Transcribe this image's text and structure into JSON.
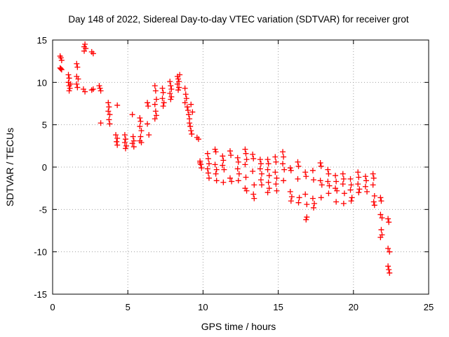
{
  "chart_data": {
    "type": "scatter",
    "title": "Day 148 of 2022, Sidereal Day-to-day VTEC variation (SDTVAR) for receiver grot",
    "xlabel": "GPS time / hours",
    "ylabel": "SDTVAR / TECUs",
    "xlim": [
      0,
      25
    ],
    "ylim": [
      -15,
      15
    ],
    "xticks": [
      0,
      5,
      10,
      15,
      20,
      25
    ],
    "yticks": [
      -15,
      -10,
      -5,
      0,
      5,
      10,
      15
    ],
    "grid": true,
    "marker": "+",
    "color": "#ff0000",
    "series": [
      {
        "name": "SDTVAR",
        "points": [
          [
            0.5,
            13.1
          ],
          [
            0.55,
            12.9
          ],
          [
            0.6,
            12.6
          ],
          [
            0.5,
            11.7
          ],
          [
            0.55,
            11.6
          ],
          [
            0.6,
            11.5
          ],
          [
            1.05,
            10.9
          ],
          [
            1.1,
            10.5
          ],
          [
            1.05,
            10.0
          ],
          [
            1.1,
            9.6
          ],
          [
            1.15,
            9.3
          ],
          [
            1.1,
            9.0
          ],
          [
            1.2,
            9.8
          ],
          [
            1.6,
            12.2
          ],
          [
            1.65,
            11.8
          ],
          [
            1.6,
            10.7
          ],
          [
            1.7,
            10.4
          ],
          [
            1.6,
            9.8
          ],
          [
            1.65,
            9.4
          ],
          [
            2.1,
            14.2
          ],
          [
            2.15,
            14.5
          ],
          [
            2.2,
            14.0
          ],
          [
            2.1,
            13.7
          ],
          [
            2.05,
            9.2
          ],
          [
            2.15,
            8.9
          ],
          [
            2.6,
            13.6
          ],
          [
            2.7,
            13.4
          ],
          [
            2.6,
            9.1
          ],
          [
            2.7,
            9.2
          ],
          [
            3.1,
            9.6
          ],
          [
            3.15,
            9.3
          ],
          [
            3.2,
            9.0
          ],
          [
            3.2,
            5.2
          ],
          [
            3.7,
            7.6
          ],
          [
            3.75,
            7.1
          ],
          [
            3.7,
            6.6
          ],
          [
            3.8,
            6.2
          ],
          [
            3.75,
            5.6
          ],
          [
            3.8,
            5.1
          ],
          [
            4.3,
            7.3
          ],
          [
            4.2,
            3.8
          ],
          [
            4.3,
            3.4
          ],
          [
            4.25,
            3.0
          ],
          [
            4.3,
            2.6
          ],
          [
            4.8,
            3.8
          ],
          [
            4.85,
            3.3
          ],
          [
            4.8,
            2.9
          ],
          [
            4.9,
            2.5
          ],
          [
            4.85,
            2.2
          ],
          [
            5.3,
            6.2
          ],
          [
            5.35,
            3.6
          ],
          [
            5.4,
            3.1
          ],
          [
            5.3,
            2.8
          ],
          [
            5.4,
            2.4
          ],
          [
            5.8,
            5.8
          ],
          [
            5.85,
            5.4
          ],
          [
            5.8,
            4.8
          ],
          [
            5.9,
            4.3
          ],
          [
            5.85,
            3.6
          ],
          [
            5.8,
            3.1
          ],
          [
            5.9,
            2.9
          ],
          [
            6.3,
            7.6
          ],
          [
            6.35,
            7.2
          ],
          [
            6.3,
            5.1
          ],
          [
            6.4,
            3.8
          ],
          [
            6.8,
            9.6
          ],
          [
            6.85,
            9.0
          ],
          [
            6.9,
            8.0
          ],
          [
            6.8,
            7.4
          ],
          [
            6.85,
            6.6
          ],
          [
            6.9,
            6.1
          ],
          [
            6.8,
            5.7
          ],
          [
            7.3,
            9.3
          ],
          [
            7.35,
            8.8
          ],
          [
            7.3,
            8.1
          ],
          [
            7.4,
            7.6
          ],
          [
            7.35,
            7.2
          ],
          [
            7.8,
            10.1
          ],
          [
            7.85,
            9.6
          ],
          [
            7.9,
            9.2
          ],
          [
            7.8,
            8.7
          ],
          [
            7.9,
            8.3
          ],
          [
            7.85,
            8.0
          ],
          [
            8.3,
            10.7
          ],
          [
            8.35,
            10.4
          ],
          [
            8.4,
            10.1
          ],
          [
            8.3,
            9.8
          ],
          [
            8.4,
            9.4
          ],
          [
            8.35,
            9.1
          ],
          [
            8.45,
            10.9
          ],
          [
            8.8,
            9.3
          ],
          [
            8.85,
            8.6
          ],
          [
            8.9,
            8.1
          ],
          [
            8.8,
            7.6
          ],
          [
            8.95,
            7.1
          ],
          [
            9.0,
            6.7
          ],
          [
            9.05,
            6.2
          ],
          [
            9.1,
            5.7
          ],
          [
            9.1,
            5.2
          ],
          [
            9.15,
            4.8
          ],
          [
            9.2,
            4.3
          ],
          [
            9.25,
            3.9
          ],
          [
            9.2,
            7.4
          ],
          [
            9.3,
            6.5
          ],
          [
            9.6,
            3.5
          ],
          [
            9.7,
            3.3
          ],
          [
            9.8,
            0.7
          ],
          [
            9.85,
            0.3
          ],
          [
            9.9,
            -0.1
          ],
          [
            9.8,
            0.5
          ],
          [
            10.3,
            1.6
          ],
          [
            10.35,
            1.0
          ],
          [
            10.4,
            0.4
          ],
          [
            10.3,
            -0.2
          ],
          [
            10.35,
            -0.7
          ],
          [
            10.4,
            -1.3
          ],
          [
            10.8,
            2.1
          ],
          [
            10.85,
            1.8
          ],
          [
            10.8,
            0.3
          ],
          [
            10.9,
            -0.3
          ],
          [
            10.85,
            -0.8
          ],
          [
            10.9,
            -1.6
          ],
          [
            11.3,
            1.3
          ],
          [
            11.35,
            0.8
          ],
          [
            11.3,
            0.2
          ],
          [
            11.4,
            -0.3
          ],
          [
            11.35,
            -1.8
          ],
          [
            11.8,
            1.9
          ],
          [
            11.85,
            1.4
          ],
          [
            11.8,
            -1.3
          ],
          [
            11.9,
            -1.7
          ],
          [
            12.3,
            1.1
          ],
          [
            12.35,
            0.6
          ],
          [
            12.3,
            -0.2
          ],
          [
            12.4,
            -0.8
          ],
          [
            12.35,
            -1.6
          ],
          [
            12.8,
            2.1
          ],
          [
            12.85,
            1.6
          ],
          [
            12.9,
            0.9
          ],
          [
            12.8,
            0.3
          ],
          [
            12.85,
            -1.2
          ],
          [
            12.9,
            -2.8
          ],
          [
            12.8,
            -2.5
          ],
          [
            13.3,
            1.5
          ],
          [
            13.35,
            1.0
          ],
          [
            13.3,
            -0.5
          ],
          [
            13.4,
            -2.1
          ],
          [
            13.35,
            -3.2
          ],
          [
            13.4,
            -3.7
          ],
          [
            13.8,
            0.9
          ],
          [
            13.85,
            0.4
          ],
          [
            13.8,
            -0.2
          ],
          [
            13.9,
            -0.8
          ],
          [
            13.85,
            -1.5
          ],
          [
            13.9,
            -2.1
          ],
          [
            14.3,
            0.9
          ],
          [
            14.35,
            0.4
          ],
          [
            14.3,
            -0.3
          ],
          [
            14.4,
            -1.0
          ],
          [
            14.35,
            -1.8
          ],
          [
            14.4,
            -2.5
          ],
          [
            14.3,
            -3.0
          ],
          [
            14.8,
            1.2
          ],
          [
            14.85,
            0.6
          ],
          [
            14.8,
            -0.6
          ],
          [
            14.9,
            -1.3
          ],
          [
            14.85,
            -2.0
          ],
          [
            14.9,
            -2.8
          ],
          [
            15.3,
            1.8
          ],
          [
            15.35,
            1.2
          ],
          [
            15.3,
            0.4
          ],
          [
            15.4,
            -0.3
          ],
          [
            15.35,
            -1.6
          ],
          [
            15.8,
            -0.1
          ],
          [
            15.85,
            -0.4
          ],
          [
            15.8,
            -2.9
          ],
          [
            15.9,
            -3.5
          ],
          [
            15.85,
            -4.0
          ],
          [
            16.3,
            0.6
          ],
          [
            16.35,
            0.1
          ],
          [
            16.3,
            -1.4
          ],
          [
            16.4,
            -3.6
          ],
          [
            16.35,
            -4.2
          ],
          [
            16.8,
            -0.6
          ],
          [
            16.85,
            -1.1
          ],
          [
            16.8,
            -3.2
          ],
          [
            16.9,
            -4.4
          ],
          [
            16.85,
            -6.2
          ],
          [
            16.9,
            -5.9
          ],
          [
            17.3,
            -0.4
          ],
          [
            17.35,
            -1.5
          ],
          [
            17.3,
            -3.7
          ],
          [
            17.4,
            -4.3
          ],
          [
            17.35,
            -4.8
          ],
          [
            17.8,
            0.5
          ],
          [
            17.85,
            0.1
          ],
          [
            17.8,
            -1.6
          ],
          [
            17.9,
            -2.1
          ],
          [
            17.85,
            -3.6
          ],
          [
            18.3,
            -0.3
          ],
          [
            18.35,
            -0.8
          ],
          [
            18.3,
            -1.7
          ],
          [
            18.4,
            -2.2
          ],
          [
            18.35,
            -3.1
          ],
          [
            18.8,
            -1.0
          ],
          [
            18.85,
            -1.7
          ],
          [
            18.8,
            -2.5
          ],
          [
            18.9,
            -2.8
          ],
          [
            18.85,
            -4.1
          ],
          [
            19.3,
            -0.8
          ],
          [
            19.35,
            -1.4
          ],
          [
            19.3,
            -2.0
          ],
          [
            19.4,
            -3.1
          ],
          [
            19.35,
            -4.3
          ],
          [
            19.8,
            -1.4
          ],
          [
            19.85,
            -2.1
          ],
          [
            19.8,
            -2.7
          ],
          [
            19.9,
            -3.6
          ],
          [
            19.85,
            -4.0
          ],
          [
            20.3,
            -0.6
          ],
          [
            20.35,
            -1.2
          ],
          [
            20.3,
            -2.0
          ],
          [
            20.4,
            -2.6
          ],
          [
            20.35,
            -3.0
          ],
          [
            20.8,
            -1.1
          ],
          [
            20.85,
            -1.6
          ],
          [
            20.8,
            -2.3
          ],
          [
            20.9,
            -2.9
          ],
          [
            21.3,
            -0.8
          ],
          [
            21.35,
            -1.3
          ],
          [
            21.3,
            -2.1
          ],
          [
            21.4,
            -3.4
          ],
          [
            21.35,
            -4.1
          ],
          [
            21.4,
            -4.5
          ],
          [
            21.8,
            -3.6
          ],
          [
            21.85,
            -4.0
          ],
          [
            21.8,
            -5.6
          ],
          [
            21.9,
            -6.0
          ],
          [
            21.85,
            -7.4
          ],
          [
            21.9,
            -8.0
          ],
          [
            21.8,
            -8.3
          ],
          [
            22.3,
            -6.1
          ],
          [
            22.35,
            -6.5
          ],
          [
            22.3,
            -9.6
          ],
          [
            22.4,
            -10.0
          ],
          [
            22.3,
            -11.7
          ],
          [
            22.35,
            -12.1
          ],
          [
            22.4,
            -12.5
          ]
        ]
      }
    ]
  }
}
